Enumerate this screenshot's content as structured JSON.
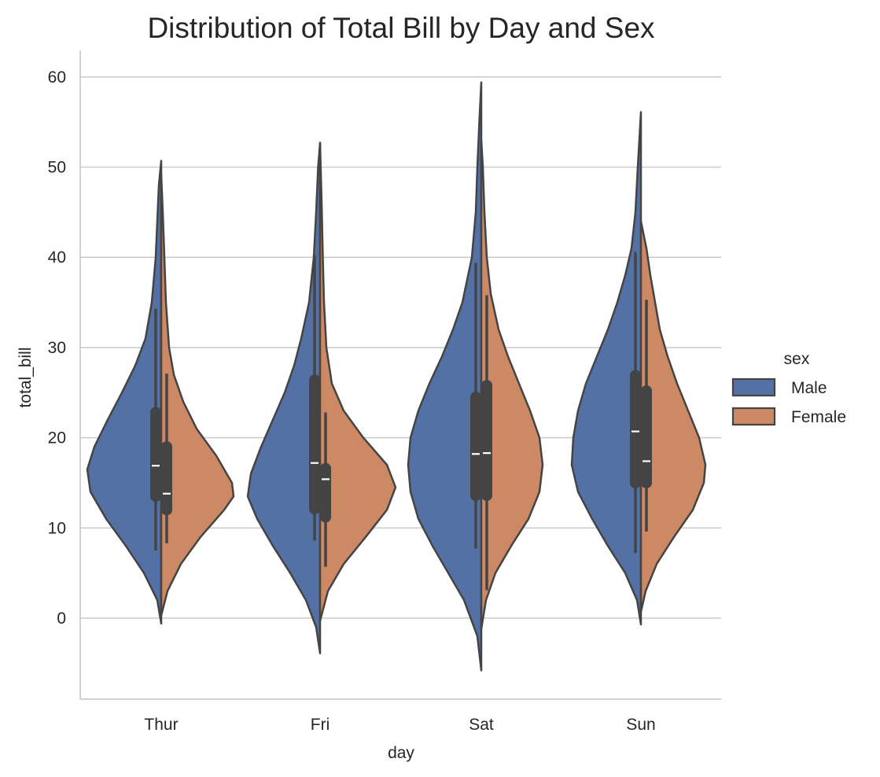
{
  "chart_data": {
    "type": "violin",
    "split": true,
    "title": "Distribution of Total Bill by Day and Sex",
    "xlabel": "day",
    "ylabel": "total_bill",
    "ylim": [
      -9,
      63
    ],
    "yticks": [
      0,
      10,
      20,
      30,
      40,
      50,
      60
    ],
    "categories": [
      "Thur",
      "Fri",
      "Sat",
      "Sun"
    ],
    "grid": "horizontal",
    "legend": {
      "title": "sex",
      "position": "right",
      "entries": [
        "Male",
        "Female"
      ]
    },
    "series": [
      {
        "name": "Male",
        "color": "#5471a6",
        "violins": [
          {
            "category": "Thur",
            "min_y": -0.6,
            "max_y": 50.7,
            "profile": [
              [
                -0.6,
                0
              ],
              [
                2,
                0.05
              ],
              [
                5,
                0.22
              ],
              [
                8,
                0.45
              ],
              [
                11,
                0.7
              ],
              [
                14,
                0.9
              ],
              [
                16.5,
                0.94
              ],
              [
                19,
                0.85
              ],
              [
                22,
                0.68
              ],
              [
                25,
                0.5
              ],
              [
                28,
                0.33
              ],
              [
                31,
                0.2
              ],
              [
                35,
                0.12
              ],
              [
                40,
                0.07
              ],
              [
                45,
                0.045
              ],
              [
                48,
                0.03
              ],
              [
                50.7,
                0
              ]
            ],
            "whisker": [
              7.5,
              34.3
            ],
            "q1": 13.5,
            "q3": 22.8,
            "median": 16.9
          },
          {
            "category": "Fri",
            "min_y": -3.9,
            "max_y": 52.7,
            "profile": [
              [
                -3.9,
                0
              ],
              [
                -1,
                0.05
              ],
              [
                2,
                0.18
              ],
              [
                5,
                0.38
              ],
              [
                8,
                0.6
              ],
              [
                11,
                0.8
              ],
              [
                13.5,
                0.92
              ],
              [
                16,
                0.88
              ],
              [
                19,
                0.75
              ],
              [
                22,
                0.6
              ],
              [
                25,
                0.45
              ],
              [
                28,
                0.33
              ],
              [
                31,
                0.24
              ],
              [
                35,
                0.14
              ],
              [
                40,
                0.08
              ],
              [
                45,
                0.05
              ],
              [
                50,
                0.025
              ],
              [
                52.7,
                0
              ]
            ],
            "whisker": [
              8.6,
              40.2
            ],
            "q1": 12.1,
            "q3": 26.4,
            "median": 17.2
          },
          {
            "category": "Sat",
            "min_y": -5.8,
            "max_y": 59.4,
            "profile": [
              [
                -5.8,
                0
              ],
              [
                -2,
                0.05
              ],
              [
                2,
                0.22
              ],
              [
                5,
                0.42
              ],
              [
                8,
                0.62
              ],
              [
                11,
                0.8
              ],
              [
                14,
                0.9
              ],
              [
                17,
                0.93
              ],
              [
                20,
                0.9
              ],
              [
                23,
                0.8
              ],
              [
                26,
                0.66
              ],
              [
                29,
                0.5
              ],
              [
                32,
                0.36
              ],
              [
                35,
                0.24
              ],
              [
                40,
                0.12
              ],
              [
                45,
                0.07
              ],
              [
                50,
                0.05
              ],
              [
                55,
                0.025
              ],
              [
                59.4,
                0
              ]
            ],
            "whisker": [
              7.7,
              39.4
            ],
            "q1": 13.6,
            "q3": 24.5,
            "median": 18.2
          },
          {
            "category": "Sun",
            "min_y": -0.7,
            "max_y": 56.1,
            "profile": [
              [
                -0.7,
                0
              ],
              [
                2,
                0.05
              ],
              [
                5,
                0.2
              ],
              [
                8,
                0.42
              ],
              [
                11,
                0.62
              ],
              [
                14,
                0.8
              ],
              [
                17,
                0.88
              ],
              [
                20,
                0.86
              ],
              [
                23,
                0.8
              ],
              [
                26,
                0.7
              ],
              [
                29,
                0.56
              ],
              [
                32,
                0.42
              ],
              [
                35,
                0.3
              ],
              [
                38,
                0.2
              ],
              [
                41,
                0.12
              ],
              [
                45,
                0.07
              ],
              [
                50,
                0.04
              ],
              [
                56.1,
                0
              ]
            ],
            "whisker": [
              7.2,
              40.6
            ],
            "q1": 15.0,
            "q3": 26.9,
            "median": 20.7
          }
        ]
      },
      {
        "name": "Female",
        "color": "#cc8963",
        "violins": [
          {
            "category": "Thur",
            "min_y": 0.3,
            "max_y": 49.2,
            "profile": [
              [
                0.3,
                0
              ],
              [
                3,
                0.08
              ],
              [
                6,
                0.25
              ],
              [
                9,
                0.5
              ],
              [
                12,
                0.8
              ],
              [
                13.5,
                0.92
              ],
              [
                15,
                0.9
              ],
              [
                18,
                0.7
              ],
              [
                21,
                0.45
              ],
              [
                24,
                0.28
              ],
              [
                27,
                0.16
              ],
              [
                30,
                0.1
              ],
              [
                35,
                0.06
              ],
              [
                40,
                0.04
              ],
              [
                45,
                0.02
              ],
              [
                49.2,
                0
              ]
            ],
            "whisker": [
              8.3,
              27.1
            ],
            "q1": 12.0,
            "q3": 19.0,
            "median": 13.8
          },
          {
            "category": "Fri",
            "min_y": -0.3,
            "max_y": 52.7,
            "profile": [
              [
                -0.3,
                0
              ],
              [
                3,
                0.1
              ],
              [
                6,
                0.3
              ],
              [
                9,
                0.58
              ],
              [
                12,
                0.85
              ],
              [
                14.5,
                0.96
              ],
              [
                17,
                0.85
              ],
              [
                20,
                0.55
              ],
              [
                23,
                0.3
              ],
              [
                26,
                0.15
              ],
              [
                30,
                0.08
              ],
              [
                35,
                0.05
              ],
              [
                40,
                0.035
              ],
              [
                46,
                0.02
              ],
              [
                52.7,
                0
              ]
            ],
            "whisker": [
              5.7,
              22.8
            ],
            "q1": 11.2,
            "q3": 16.6,
            "median": 15.4
          },
          {
            "category": "Sat",
            "min_y": -1.2,
            "max_y": 53.0,
            "profile": [
              [
                -1.2,
                0
              ],
              [
                2,
                0.06
              ],
              [
                5,
                0.18
              ],
              [
                8,
                0.38
              ],
              [
                11,
                0.6
              ],
              [
                14,
                0.74
              ],
              [
                17,
                0.78
              ],
              [
                20,
                0.74
              ],
              [
                23,
                0.62
              ],
              [
                26,
                0.48
              ],
              [
                29,
                0.34
              ],
              [
                32,
                0.22
              ],
              [
                36,
                0.12
              ],
              [
                40,
                0.07
              ],
              [
                45,
                0.04
              ],
              [
                50,
                0.02
              ],
              [
                53,
                0
              ]
            ],
            "whisker": [
              3.1,
              35.8
            ],
            "q1": 13.6,
            "q3": 25.8,
            "median": 18.3
          },
          {
            "category": "Sun",
            "min_y": 0.7,
            "max_y": 44.0,
            "profile": [
              [
                0.7,
                0
              ],
              [
                3,
                0.06
              ],
              [
                6,
                0.2
              ],
              [
                9,
                0.42
              ],
              [
                12,
                0.66
              ],
              [
                15,
                0.8
              ],
              [
                17,
                0.82
              ],
              [
                20,
                0.74
              ],
              [
                23,
                0.6
              ],
              [
                26,
                0.46
              ],
              [
                29,
                0.34
              ],
              [
                32,
                0.24
              ],
              [
                35,
                0.18
              ],
              [
                38,
                0.12
              ],
              [
                41,
                0.07
              ],
              [
                44,
                0
              ]
            ],
            "whisker": [
              9.6,
              35.3
            ],
            "q1": 15.0,
            "q3": 25.2,
            "median": 17.4
          }
        ]
      }
    ]
  }
}
